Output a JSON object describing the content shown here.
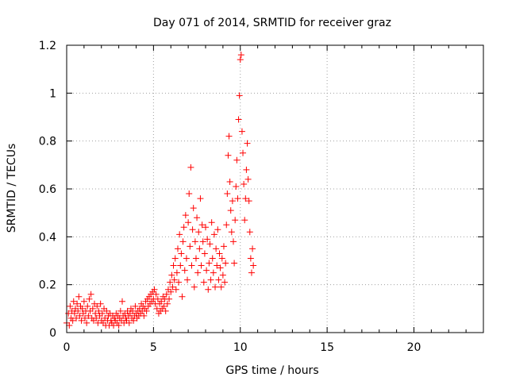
{
  "chart_data": {
    "type": "scatter",
    "title": "Day 071 of 2014, SRMTID for receiver graz",
    "xlabel": "GPS time / hours",
    "ylabel": "SRMTID / TECUs",
    "xlim": [
      0,
      24
    ],
    "ylim": [
      0,
      1.2
    ],
    "xticks": [
      0,
      5,
      10,
      15,
      20
    ],
    "yticks": [
      0,
      0.2,
      0.4,
      0.6,
      0.8,
      1,
      1.2
    ],
    "xtick_labels": [
      "0",
      "5",
      "10",
      "15",
      "20"
    ],
    "ytick_labels": [
      "0",
      "0.2",
      "0.4",
      "0.6",
      "0.8",
      "1",
      "1.2"
    ],
    "grid": true,
    "marker": "+",
    "marker_color": "#ff0000",
    "series": [
      {
        "name": "graz",
        "points": [
          [
            0.0,
            0.04
          ],
          [
            0.1,
            0.08
          ],
          [
            0.15,
            0.03
          ],
          [
            0.2,
            0.11
          ],
          [
            0.25,
            0.06
          ],
          [
            0.3,
            0.09
          ],
          [
            0.35,
            0.05
          ],
          [
            0.4,
            0.13
          ],
          [
            0.45,
            0.08
          ],
          [
            0.5,
            0.1
          ],
          [
            0.55,
            0.06
          ],
          [
            0.6,
            0.12
          ],
          [
            0.65,
            0.09
          ],
          [
            0.7,
            0.15
          ],
          [
            0.75,
            0.07
          ],
          [
            0.8,
            0.11
          ],
          [
            0.85,
            0.05
          ],
          [
            0.9,
            0.1
          ],
          [
            0.95,
            0.08
          ],
          [
            1.0,
            0.13
          ],
          [
            1.05,
            0.06
          ],
          [
            1.1,
            0.09
          ],
          [
            1.15,
            0.04
          ],
          [
            1.2,
            0.11
          ],
          [
            1.25,
            0.07
          ],
          [
            1.3,
            0.14
          ],
          [
            1.35,
            0.09
          ],
          [
            1.4,
            0.16
          ],
          [
            1.45,
            0.06
          ],
          [
            1.5,
            0.1
          ],
          [
            1.55,
            0.05
          ],
          [
            1.6,
            0.12
          ],
          [
            1.65,
            0.08
          ],
          [
            1.7,
            0.06
          ],
          [
            1.75,
            0.11
          ],
          [
            1.8,
            0.04
          ],
          [
            1.85,
            0.09
          ],
          [
            1.9,
            0.07
          ],
          [
            1.95,
            0.12
          ],
          [
            2.0,
            0.05
          ],
          [
            2.05,
            0.08
          ],
          [
            2.1,
            0.04
          ],
          [
            2.15,
            0.1
          ],
          [
            2.2,
            0.06
          ],
          [
            2.25,
            0.03
          ],
          [
            2.3,
            0.09
          ],
          [
            2.35,
            0.05
          ],
          [
            2.4,
            0.07
          ],
          [
            2.45,
            0.03
          ],
          [
            2.5,
            0.08
          ],
          [
            2.55,
            0.05
          ],
          [
            2.6,
            0.04
          ],
          [
            2.65,
            0.07
          ],
          [
            2.7,
            0.03
          ],
          [
            2.75,
            0.06
          ],
          [
            2.8,
            0.05
          ],
          [
            2.85,
            0.08
          ],
          [
            2.9,
            0.04
          ],
          [
            2.95,
            0.07
          ],
          [
            3.0,
            0.03
          ],
          [
            3.05,
            0.06
          ],
          [
            3.1,
            0.09
          ],
          [
            3.15,
            0.05
          ],
          [
            3.2,
            0.13
          ],
          [
            3.25,
            0.07
          ],
          [
            3.3,
            0.04
          ],
          [
            3.35,
            0.08
          ],
          [
            3.4,
            0.06
          ],
          [
            3.45,
            0.05
          ],
          [
            3.5,
            0.09
          ],
          [
            3.55,
            0.07
          ],
          [
            3.6,
            0.04
          ],
          [
            3.65,
            0.08
          ],
          [
            3.7,
            0.1
          ],
          [
            3.75,
            0.06
          ],
          [
            3.8,
            0.09
          ],
          [
            3.85,
            0.05
          ],
          [
            3.9,
            0.07
          ],
          [
            3.95,
            0.11
          ],
          [
            4.0,
            0.08
          ],
          [
            4.05,
            0.06
          ],
          [
            4.1,
            0.09
          ],
          [
            4.15,
            0.07
          ],
          [
            4.2,
            0.1
          ],
          [
            4.25,
            0.08
          ],
          [
            4.3,
            0.12
          ],
          [
            4.35,
            0.09
          ],
          [
            4.4,
            0.11
          ],
          [
            4.45,
            0.07
          ],
          [
            4.5,
            0.1
          ],
          [
            4.55,
            0.13
          ],
          [
            4.6,
            0.09
          ],
          [
            4.65,
            0.14
          ],
          [
            4.7,
            0.11
          ],
          [
            4.75,
            0.15
          ],
          [
            4.8,
            0.12
          ],
          [
            4.85,
            0.16
          ],
          [
            4.9,
            0.13
          ],
          [
            4.95,
            0.17
          ],
          [
            5.0,
            0.14
          ],
          [
            5.05,
            0.18
          ],
          [
            5.1,
            0.12
          ],
          [
            5.15,
            0.16
          ],
          [
            5.2,
            0.1
          ],
          [
            5.25,
            0.14
          ],
          [
            5.3,
            0.08
          ],
          [
            5.35,
            0.12
          ],
          [
            5.4,
            0.09
          ],
          [
            5.45,
            0.13
          ],
          [
            5.5,
            0.1
          ],
          [
            5.55,
            0.15
          ],
          [
            5.6,
            0.11
          ],
          [
            5.65,
            0.14
          ],
          [
            5.7,
            0.09
          ],
          [
            5.75,
            0.16
          ],
          [
            5.8,
            0.12
          ],
          [
            5.85,
            0.18
          ],
          [
            5.9,
            0.14
          ],
          [
            5.95,
            0.21
          ],
          [
            6.0,
            0.17
          ],
          [
            6.05,
            0.24
          ],
          [
            6.1,
            0.19
          ],
          [
            6.15,
            0.28
          ],
          [
            6.2,
            0.22
          ],
          [
            6.25,
            0.31
          ],
          [
            6.3,
            0.18
          ],
          [
            6.35,
            0.25
          ],
          [
            6.4,
            0.35
          ],
          [
            6.45,
            0.21
          ],
          [
            6.5,
            0.41
          ],
          [
            6.55,
            0.28
          ],
          [
            6.6,
            0.33
          ],
          [
            6.65,
            0.15
          ],
          [
            6.7,
            0.38
          ],
          [
            6.75,
            0.44
          ],
          [
            6.8,
            0.26
          ],
          [
            6.85,
            0.49
          ],
          [
            6.9,
            0.31
          ],
          [
            6.95,
            0.22
          ],
          [
            7.0,
            0.46
          ],
          [
            7.05,
            0.58
          ],
          [
            7.1,
            0.36
          ],
          [
            7.15,
            0.69
          ],
          [
            7.2,
            0.28
          ],
          [
            7.25,
            0.43
          ],
          [
            7.3,
            0.52
          ],
          [
            7.35,
            0.19
          ],
          [
            7.4,
            0.38
          ],
          [
            7.45,
            0.31
          ],
          [
            7.5,
            0.48
          ],
          [
            7.55,
            0.25
          ],
          [
            7.6,
            0.42
          ],
          [
            7.65,
            0.35
          ],
          [
            7.7,
            0.56
          ],
          [
            7.75,
            0.28
          ],
          [
            7.8,
            0.45
          ],
          [
            7.85,
            0.38
          ],
          [
            7.9,
            0.21
          ],
          [
            7.95,
            0.33
          ],
          [
            8.0,
            0.44
          ],
          [
            8.05,
            0.26
          ],
          [
            8.1,
            0.39
          ],
          [
            8.15,
            0.18
          ],
          [
            8.2,
            0.29
          ],
          [
            8.25,
            0.37
          ],
          [
            8.3,
            0.22
          ],
          [
            8.35,
            0.46
          ],
          [
            8.4,
            0.31
          ],
          [
            8.45,
            0.25
          ],
          [
            8.5,
            0.41
          ],
          [
            8.55,
            0.19
          ],
          [
            8.6,
            0.35
          ],
          [
            8.65,
            0.28
          ],
          [
            8.7,
            0.43
          ],
          [
            8.75,
            0.22
          ],
          [
            8.8,
            0.33
          ],
          [
            8.85,
            0.27
          ],
          [
            8.9,
            0.19
          ],
          [
            8.95,
            0.31
          ],
          [
            9.0,
            0.24
          ],
          [
            9.05,
            0.36
          ],
          [
            9.1,
            0.21
          ],
          [
            9.15,
            0.29
          ],
          [
            9.2,
            0.45
          ],
          [
            9.25,
            0.58
          ],
          [
            9.3,
            0.74
          ],
          [
            9.35,
            0.82
          ],
          [
            9.4,
            0.63
          ],
          [
            9.45,
            0.51
          ],
          [
            9.5,
            0.42
          ],
          [
            9.55,
            0.55
          ],
          [
            9.6,
            0.38
          ],
          [
            9.65,
            0.29
          ],
          [
            9.7,
            0.47
          ],
          [
            9.75,
            0.61
          ],
          [
            9.8,
            0.72
          ],
          [
            9.85,
            0.56
          ],
          [
            9.9,
            0.89
          ],
          [
            9.95,
            0.99
          ],
          [
            10.0,
            1.14
          ],
          [
            10.05,
            1.16
          ],
          [
            10.1,
            0.84
          ],
          [
            10.15,
            0.75
          ],
          [
            10.2,
            0.62
          ],
          [
            10.25,
            0.47
          ],
          [
            10.3,
            0.56
          ],
          [
            10.35,
            0.68
          ],
          [
            10.4,
            0.79
          ],
          [
            10.45,
            0.64
          ],
          [
            10.5,
            0.55
          ],
          [
            10.55,
            0.42
          ],
          [
            10.6,
            0.31
          ],
          [
            10.65,
            0.25
          ],
          [
            10.7,
            0.35
          ],
          [
            10.75,
            0.28
          ]
        ]
      }
    ]
  }
}
